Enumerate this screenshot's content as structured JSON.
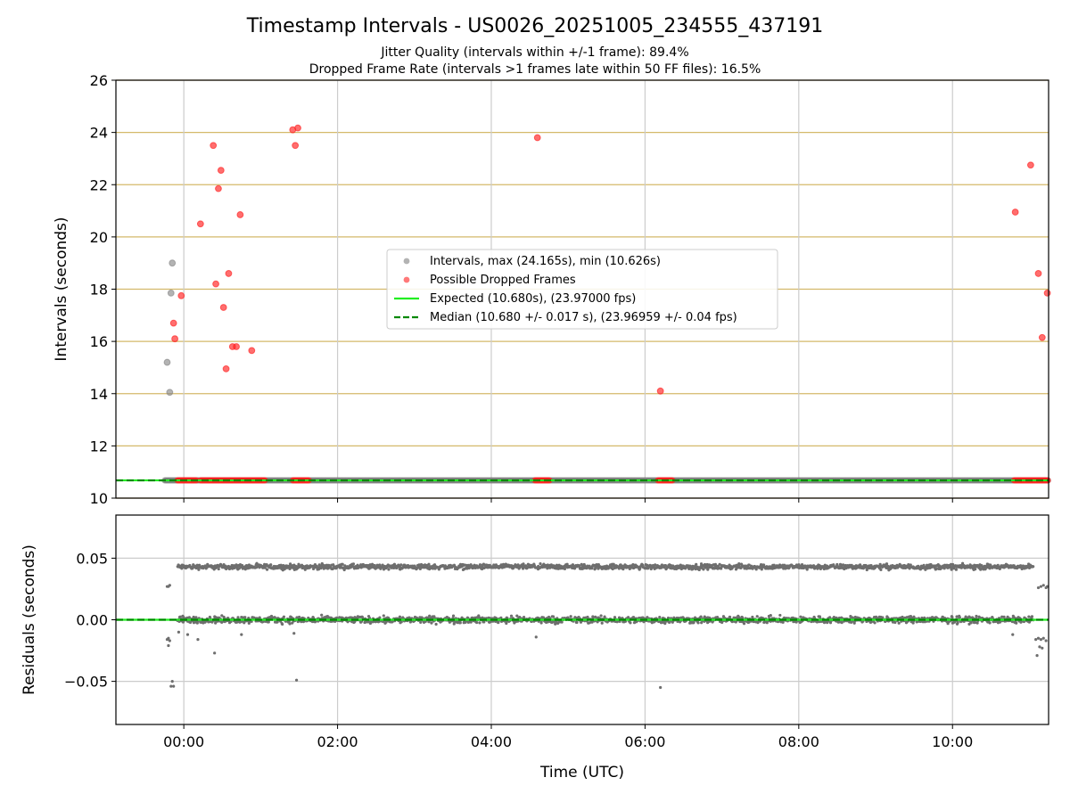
{
  "title": "Timestamp Intervals - US0026_20251005_234555_437191",
  "subtitle_lines": [
    "Jitter Quality (intervals within +/-1 frame): 89.4%",
    "Dropped Frame Rate (intervals >1 frames late within 50 FF files): 16.5%"
  ],
  "colors": {
    "intervals": "#808080",
    "dropped": "#ff2020",
    "expected": "#22ee22",
    "median": "#008800",
    "residuals": "#6e6e6e",
    "hgrid_top": "#d4b96a",
    "grid": "#cccccc"
  },
  "chart_data": [
    {
      "type": "scatter",
      "xlabel": "",
      "ylabel": "Intervals (seconds)",
      "xlim": [
        "23:07",
        "11:15"
      ],
      "ylim": [
        10,
        26
      ],
      "yticks": [
        10,
        12,
        14,
        16,
        18,
        20,
        22,
        24,
        26
      ],
      "xticks": [
        "00:00",
        "02:00",
        "04:00",
        "06:00",
        "08:00",
        "10:00"
      ],
      "grid": true,
      "legend_position": "center",
      "legend": [
        {
          "label": "Intervals, max (24.165s), min (10.626s)",
          "kind": "marker",
          "color": "#808080"
        },
        {
          "label": "Possible Dropped Frames",
          "kind": "marker",
          "color": "#ff2020"
        },
        {
          "label": "Expected (10.680s), (23.97000 fps)",
          "kind": "line",
          "color": "#22ee22"
        },
        {
          "label": "Median (10.680 +/- 0.017 s), (23.96959 +/- 0.04 fps)",
          "kind": "dashed",
          "color": "#008800"
        }
      ],
      "series": [
        {
          "name": "Intervals, max (24.165s), min (10.626s)",
          "band": {
            "x_start": "23:45",
            "x_end": "11:15",
            "y": 10.68
          },
          "points": [
            {
              "x": "23:47",
              "y": 15.2
            },
            {
              "x": "23:49",
              "y": 14.05
            },
            {
              "x": "23:51",
              "y": 19.0
            },
            {
              "x": "23:50",
              "y": 17.85
            }
          ]
        },
        {
          "name": "Possible Dropped Frames",
          "clusters": [
            {
              "x_start": "23:55",
              "x_end": "00:10",
              "y": 10.68
            },
            {
              "x_start": "00:13",
              "x_end": "01:04",
              "y": 10.68
            },
            {
              "x_start": "01:25",
              "x_end": "01:38",
              "y": 10.68
            },
            {
              "x_start": "04:34",
              "x_end": "04:46",
              "y": 10.68
            },
            {
              "x_start": "06:10",
              "x_end": "06:22",
              "y": 10.68
            },
            {
              "x_start": "10:48",
              "x_end": "11:15",
              "y": 10.68
            }
          ],
          "points": [
            {
              "x": "23:52",
              "y": 16.7
            },
            {
              "x": "23:53",
              "y": 16.1
            },
            {
              "x": "23:58",
              "y": 17.75
            },
            {
              "x": "00:13",
              "y": 20.5
            },
            {
              "x": "00:23",
              "y": 23.5
            },
            {
              "x": "00:25",
              "y": 18.2
            },
            {
              "x": "00:27",
              "y": 21.85
            },
            {
              "x": "00:29",
              "y": 22.55
            },
            {
              "x": "00:31",
              "y": 17.3
            },
            {
              "x": "00:33",
              "y": 14.95
            },
            {
              "x": "00:35",
              "y": 18.6
            },
            {
              "x": "00:38",
              "y": 15.8
            },
            {
              "x": "00:41",
              "y": 15.8
            },
            {
              "x": "00:44",
              "y": 20.85
            },
            {
              "x": "00:53",
              "y": 15.65
            },
            {
              "x": "01:25",
              "y": 24.1
            },
            {
              "x": "01:27",
              "y": 23.5
            },
            {
              "x": "01:29",
              "y": 24.17
            },
            {
              "x": "04:36",
              "y": 23.8
            },
            {
              "x": "06:12",
              "y": 14.1
            },
            {
              "x": "10:49",
              "y": 20.95
            },
            {
              "x": "11:01",
              "y": 22.75
            },
            {
              "x": "11:07",
              "y": 18.6
            },
            {
              "x": "11:10",
              "y": 16.15
            },
            {
              "x": "11:14",
              "y": 17.85
            }
          ]
        },
        {
          "name": "Expected (10.680s), (23.97000 fps)",
          "y": 10.68
        },
        {
          "name": "Median (10.680 +/- 0.017 s), (23.96959 +/- 0.04 fps)",
          "y": 10.68
        }
      ]
    },
    {
      "type": "scatter",
      "xlabel": "Time (UTC)",
      "ylabel": "Residuals (seconds)",
      "xlim": [
        "23:07",
        "11:15"
      ],
      "ylim": [
        -0.085,
        0.085
      ],
      "yticks": [
        -0.05,
        0.0,
        0.05
      ],
      "ytick_labels": [
        "−0.05",
        "0.00",
        "0.05"
      ],
      "xticks": [
        "00:00",
        "02:00",
        "04:00",
        "06:00",
        "08:00",
        "10:00"
      ],
      "grid": true,
      "series": [
        {
          "name": "",
          "bands": [
            {
              "x_start": "23:55",
              "x_end": "11:03",
              "y_center": 0.043,
              "spread": 0.003
            },
            {
              "x_start": "23:55",
              "x_end": "11:03",
              "y_center": 0.0,
              "spread": 0.004
            }
          ],
          "points": [
            {
              "x": "23:47",
              "y": 0.027
            },
            {
              "x": "23:48",
              "y": 0.027
            },
            {
              "x": "23:49",
              "y": 0.028
            },
            {
              "x": "23:47",
              "y": -0.016
            },
            {
              "x": "23:48",
              "y": -0.015
            },
            {
              "x": "23:49",
              "y": -0.017
            },
            {
              "x": "23:48",
              "y": -0.021
            },
            {
              "x": "23:50",
              "y": -0.054
            },
            {
              "x": "23:52",
              "y": -0.054
            },
            {
              "x": "23:51",
              "y": -0.05
            },
            {
              "x": "23:56",
              "y": -0.01
            },
            {
              "x": "00:03",
              "y": -0.012
            },
            {
              "x": "00:11",
              "y": -0.016
            },
            {
              "x": "00:24",
              "y": -0.027
            },
            {
              "x": "00:45",
              "y": -0.012
            },
            {
              "x": "01:28",
              "y": -0.049
            },
            {
              "x": "01:26",
              "y": -0.011
            },
            {
              "x": "04:35",
              "y": -0.014
            },
            {
              "x": "06:12",
              "y": -0.055
            },
            {
              "x": "10:47",
              "y": -0.012
            },
            {
              "x": "11:05",
              "y": -0.016
            },
            {
              "x": "11:07",
              "y": -0.015
            },
            {
              "x": "11:09",
              "y": -0.016
            },
            {
              "x": "11:11",
              "y": -0.015
            },
            {
              "x": "11:13",
              "y": -0.017
            },
            {
              "x": "11:08",
              "y": -0.022
            },
            {
              "x": "11:10",
              "y": -0.023
            },
            {
              "x": "11:06",
              "y": -0.029
            },
            {
              "x": "11:07",
              "y": 0.026
            },
            {
              "x": "11:09",
              "y": 0.027
            },
            {
              "x": "11:11",
              "y": 0.028
            },
            {
              "x": "11:13",
              "y": 0.026
            },
            {
              "x": "11:14",
              "y": 0.027
            }
          ]
        },
        {
          "name": "",
          "y": 0.0
        }
      ]
    }
  ]
}
